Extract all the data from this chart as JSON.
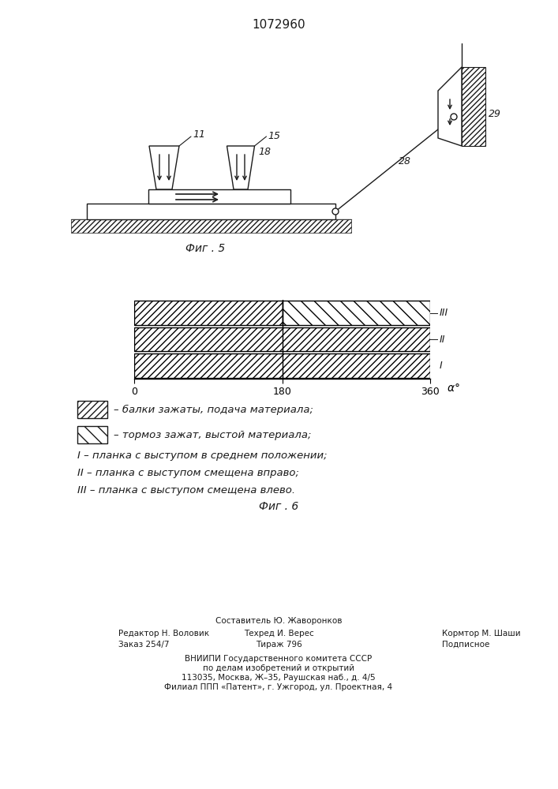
{
  "title": "1072960",
  "fig5_label": "Фиг . 5",
  "fig6_label": "Фиг . 6",
  "legend1": "– балки зажаты, подача материала;",
  "legend2": "– тормоз зажат, выстой материала;",
  "legend_I": "I – планка с выступом в среднем положении;",
  "legend_II": "II – планка с выступом смещена вправо;",
  "legend_III": "III – планка с выступом смещена влево.",
  "footer_sestavitel": "Составитель Ю. Жаворонков",
  "footer_redaktor": "Редактор Н. Воловик",
  "footer_tehred": "Техред И. Верес",
  "footer_kormtor": "Кормтор М. Шаши",
  "footer_zakaz": "Заказ 254/7",
  "footer_tirazh": "Тираж 796",
  "footer_podpisnoe": "Подписное",
  "footer_vniip1": "ВНИИПИ Государственного комитета СССР",
  "footer_vniip2": "по делам изобретений и открытий",
  "footer_addr": "113035, Москва, Ж–35, Раушская наб., д. 4/5",
  "footer_filial": "Филиал ППП «Патент», г. Ужгород, ул. Проектная, 4",
  "line_color": "#1a1a1a"
}
